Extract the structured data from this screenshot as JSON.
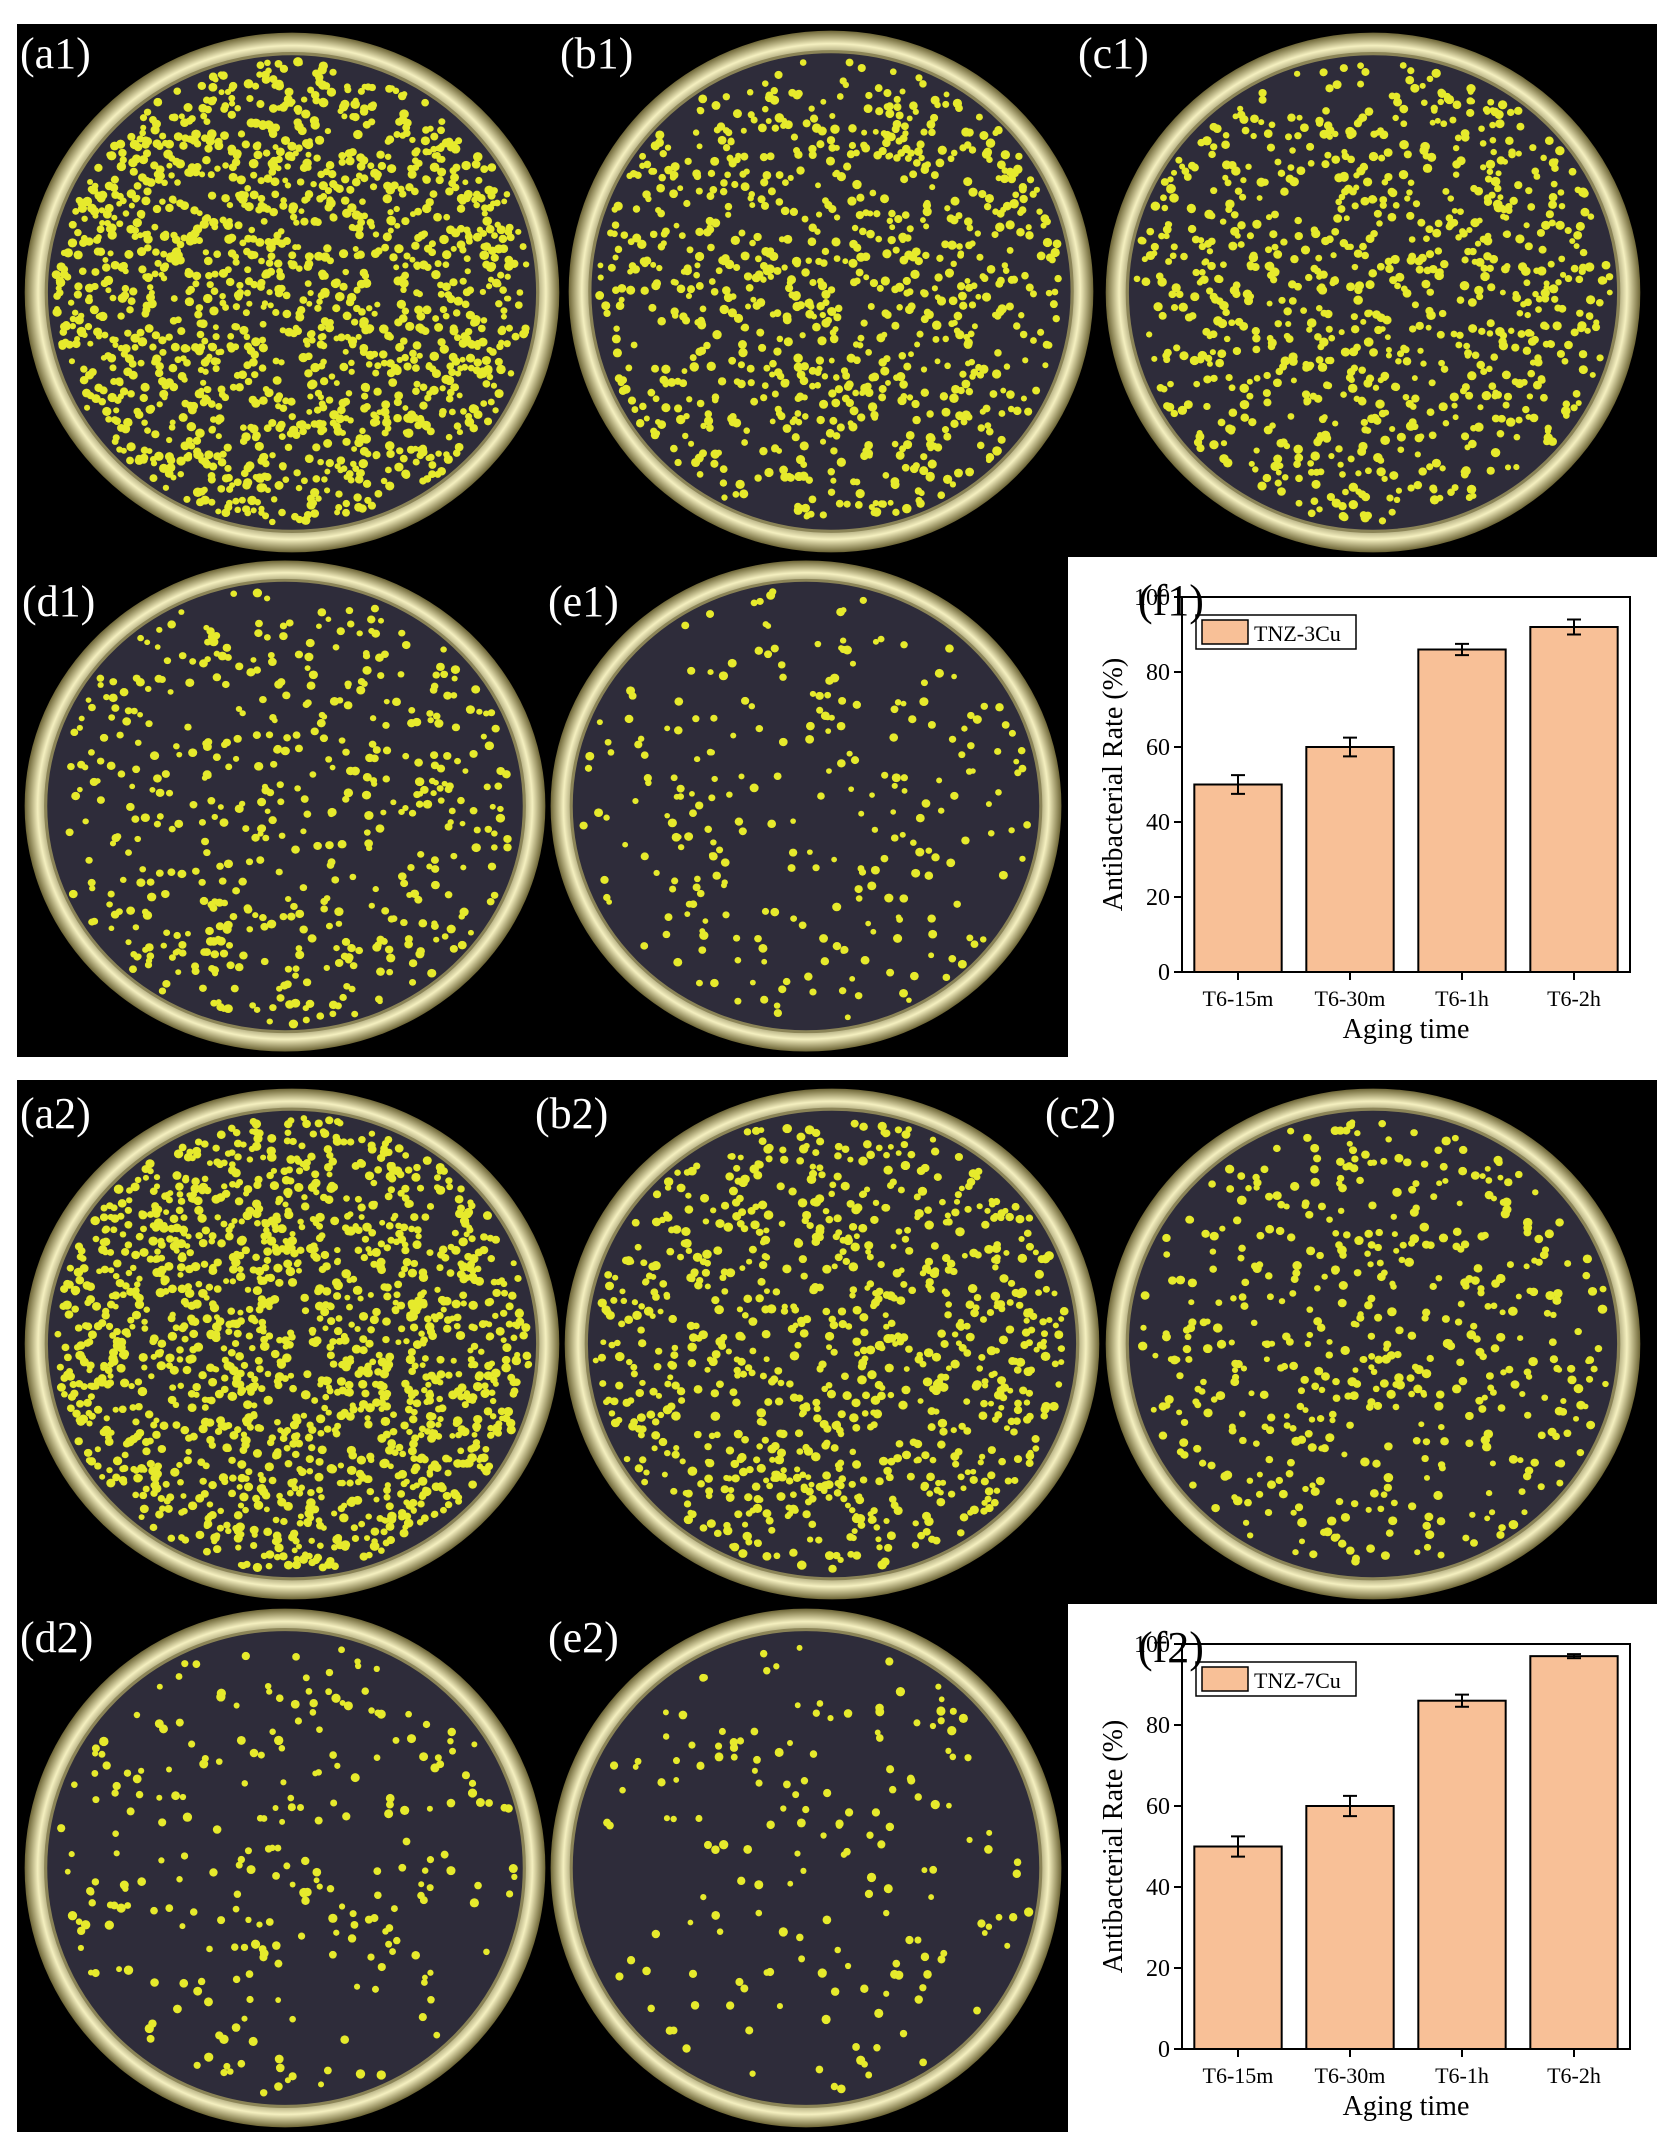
{
  "plates_row1": [
    {
      "label": "(a1)",
      "density": "very-high"
    },
    {
      "label": "(b1)",
      "density": "high"
    },
    {
      "label": "(c1)",
      "density": "high"
    },
    {
      "label": "(d1)",
      "density": "medium"
    },
    {
      "label": "(e1)",
      "density": "low"
    }
  ],
  "plates_row2": [
    {
      "label": "(a2)",
      "density": "very-high"
    },
    {
      "label": "(b2)",
      "density": "high"
    },
    {
      "label": "(c2)",
      "density": "medium"
    },
    {
      "label": "(d2)",
      "density": "low"
    },
    {
      "label": "(e2)",
      "density": "very-low"
    }
  ],
  "colors": {
    "background": "#000000",
    "plate_rim": "#d9cf8a",
    "plate_agar": "#2e2c3a",
    "colony": "#e6ea2c",
    "bar_fill": "#f8c097",
    "bar_stroke": "#000000"
  },
  "chart_data": [
    {
      "type": "bar",
      "panel_label": "(f1)",
      "legend": "TNZ-3Cu",
      "categories": [
        "T6-15m",
        "T6-30m",
        "T6-1h",
        "T6-2h"
      ],
      "values": [
        50,
        60,
        86,
        92
      ],
      "errors": [
        2.5,
        2.5,
        1.5,
        2
      ],
      "xlabel": "Aging time",
      "ylabel": "Antibacterial Rate (%)",
      "ylim": [
        0,
        100
      ],
      "yticks": [
        "0",
        "20",
        "40",
        "60",
        "80",
        "100"
      ]
    },
    {
      "type": "bar",
      "panel_label": "(f2)",
      "legend": "TNZ-7Cu",
      "categories": [
        "T6-15m",
        "T6-30m",
        "T6-1h",
        "T6-2h"
      ],
      "values": [
        50,
        60,
        86,
        97
      ],
      "errors": [
        2.5,
        2.5,
        1.5,
        0.5
      ],
      "xlabel": "Aging time",
      "ylabel": "Antibacterial Rate (%)",
      "ylim": [
        0,
        100
      ],
      "yticks": [
        "0",
        "20",
        "40",
        "60",
        "80",
        "100"
      ]
    }
  ]
}
